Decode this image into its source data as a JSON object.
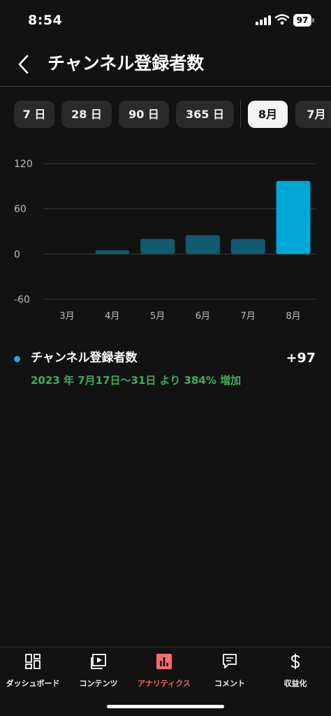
{
  "status_bar": {
    "time": "8:54",
    "battery": "97"
  },
  "header": {
    "title": "チャンネル登録者数"
  },
  "periods": [
    {
      "label": "7 日",
      "active": false
    },
    {
      "label": "28 日",
      "active": false
    },
    {
      "label": "90 日",
      "active": false
    },
    {
      "label": "365 日",
      "active": false
    },
    {
      "label": "8月",
      "active": true
    },
    {
      "label": "7月",
      "active": false
    }
  ],
  "chart_data": {
    "type": "bar",
    "categories": [
      "3月",
      "4月",
      "5月",
      "6月",
      "7月",
      "8月"
    ],
    "values": [
      0,
      5,
      20,
      25,
      20,
      97
    ],
    "y_ticks": [
      120,
      60,
      0,
      -60
    ],
    "ylim": [
      -60,
      120
    ],
    "highlight_index": 5,
    "colors": {
      "bar": "#0f5a6f",
      "highlight": "#00a6d6",
      "grid": "#3a3a3a"
    }
  },
  "summary": {
    "label": "チャンネル登録者数",
    "value": "+97",
    "change": "2023 年 7月17日～31日 より 384% 増加",
    "dot_color": "#1ea8d8",
    "change_color": "#3fae55"
  },
  "bottom_nav": [
    {
      "label": "ダッシュボード",
      "icon": "dashboard-icon",
      "active": false
    },
    {
      "label": "コンテンツ",
      "icon": "content-icon",
      "active": false
    },
    {
      "label": "アナリティクス",
      "icon": "analytics-icon",
      "active": true
    },
    {
      "label": "コメント",
      "icon": "comment-icon",
      "active": false
    },
    {
      "label": "収益化",
      "icon": "dollar-icon",
      "active": false
    }
  ]
}
